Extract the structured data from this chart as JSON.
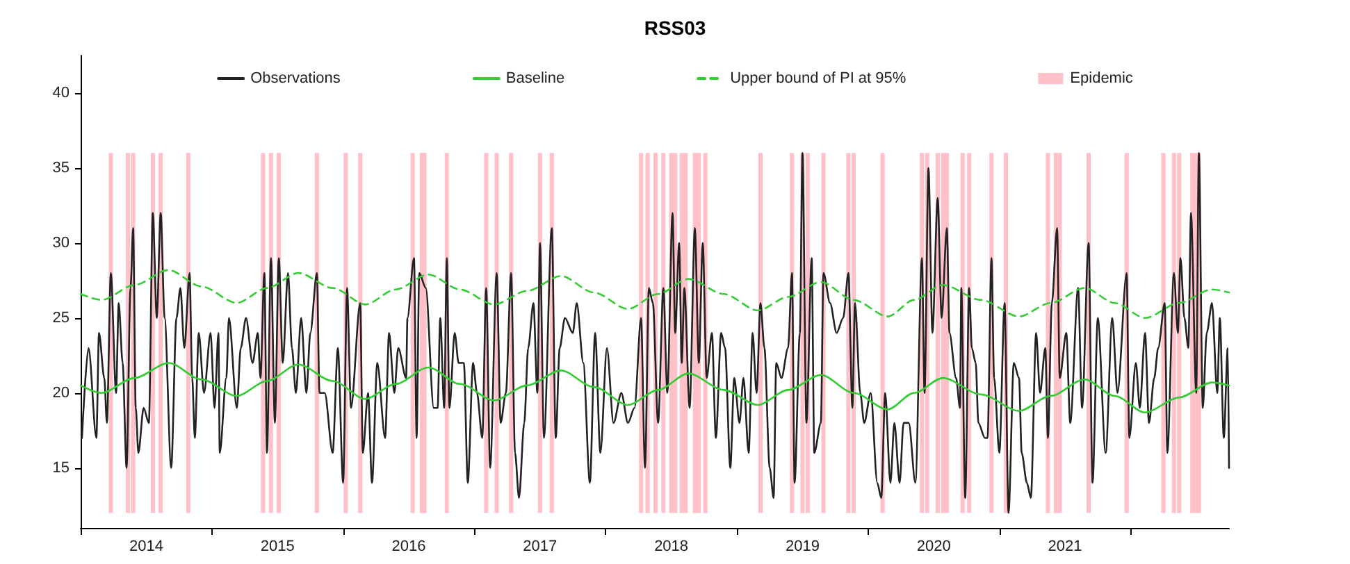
{
  "chart_data": {
    "type": "line",
    "title": "RSS03",
    "xlim": [
      2014,
      2022.75
    ],
    "xticks": [
      {
        "value": 2014,
        "label": null
      },
      {
        "value": 2014.5,
        "label": "2014"
      },
      {
        "value": 2015,
        "label": null
      },
      {
        "value": 2015.5,
        "label": "2015"
      },
      {
        "value": 2016,
        "label": null
      },
      {
        "value": 2016.5,
        "label": "2016"
      },
      {
        "value": 2017,
        "label": null
      },
      {
        "value": 2017.5,
        "label": "2017"
      },
      {
        "value": 2018,
        "label": null
      },
      {
        "value": 2018.5,
        "label": "2018"
      },
      {
        "value": 2019,
        "label": null
      },
      {
        "value": 2019.5,
        "label": "2019"
      },
      {
        "value": 2020,
        "label": null
      },
      {
        "value": 2020.5,
        "label": "2020"
      },
      {
        "value": 2021,
        "label": null
      },
      {
        "value": 2021.5,
        "label": "2021"
      },
      {
        "value": 2022,
        "label": null
      }
    ],
    "ylim": [
      11,
      42.5
    ],
    "yticks": [
      15,
      20,
      25,
      30,
      35,
      40
    ],
    "legend": "top",
    "marker": "none",
    "series": [
      {
        "name": "Observations",
        "color": "#222222",
        "line_style": "solid",
        "x": [
          2014.01,
          2014.06,
          2014.12,
          2014.14,
          2014.18,
          2014.2,
          2014.23,
          2014.27,
          2014.29,
          2014.32,
          2014.35,
          2014.38,
          2014.4,
          2014.42,
          2014.44,
          2014.48,
          2014.52,
          2014.55,
          2014.58,
          2014.61,
          2014.64,
          2014.69,
          2014.73,
          2014.76,
          2014.79,
          2014.83,
          2014.85,
          2014.87,
          2014.9,
          2014.94,
          2014.99,
          2015.02,
          2015.05,
          2015.06,
          2015.11,
          2015.13,
          2015.19,
          2015.22,
          2015.26,
          2015.31,
          2015.35,
          2015.37,
          2015.4,
          2015.42,
          2015.45,
          2015.48,
          2015.51,
          2015.54,
          2015.58,
          2015.61,
          2015.64,
          2015.68,
          2015.72,
          2015.75,
          2015.8,
          2015.82,
          2015.86,
          2015.92,
          2015.96,
          2016.0,
          2016.03,
          2016.06,
          2016.13,
          2016.15,
          2016.19,
          2016.22,
          2016.26,
          2016.32,
          2016.35,
          2016.39,
          2016.42,
          2016.48,
          2016.49,
          2016.54,
          2016.56,
          2016.58,
          2016.63,
          2016.69,
          2016.72,
          2016.74,
          2016.77,
          2016.79,
          2016.81,
          2016.85,
          2016.88,
          2016.92,
          2016.95,
          2016.99,
          2017.02,
          2017.06,
          2017.09,
          2017.12,
          2017.17,
          2017.2,
          2017.24,
          2017.28,
          2017.31,
          2017.34,
          2017.38,
          2017.41,
          2017.45,
          2017.48,
          2017.5,
          2017.53,
          2017.59,
          2017.62,
          2017.65,
          2017.69,
          2017.75,
          2017.78,
          2017.83,
          2017.88,
          2017.92,
          2017.96,
          2018.01,
          2018.06,
          2018.12,
          2018.17,
          2018.22,
          2018.27,
          2018.3,
          2018.33,
          2018.36,
          2018.4,
          2018.44,
          2018.47,
          2018.51,
          2018.53,
          2018.56,
          2018.58,
          2018.6,
          2018.64,
          2018.68,
          2018.71,
          2018.74,
          2018.77,
          2018.81,
          2018.84,
          2018.88,
          2018.91,
          2018.95,
          2018.98,
          2019.02,
          2019.05,
          2019.09,
          2019.12,
          2019.15,
          2019.18,
          2019.21,
          2019.25,
          2019.28,
          2019.3,
          2019.34,
          2019.39,
          2019.42,
          2019.44,
          2019.48,
          2019.5,
          2019.53,
          2019.57,
          2019.59,
          2019.64,
          2019.66,
          2019.71,
          2019.76,
          2019.81,
          2019.85,
          2019.88,
          2019.9,
          2019.94,
          2019.97,
          2020.02,
          2020.07,
          2020.1,
          2020.13,
          2020.17,
          2020.2,
          2020.24,
          2020.27,
          2020.31,
          2020.36,
          2020.41,
          2020.43,
          2020.46,
          2020.49,
          2020.53,
          2020.56,
          2020.6,
          2020.62,
          2020.67,
          2020.7,
          2020.71,
          2020.74,
          2020.77,
          2020.79,
          2020.82,
          2020.84,
          2020.89,
          2020.91,
          2020.94,
          2020.96,
          2021.0,
          2021.04,
          2021.07,
          2021.11,
          2021.15,
          2021.17,
          2021.21,
          2021.24,
          2021.28,
          2021.31,
          2021.35,
          2021.37,
          2021.4,
          2021.44,
          2021.46,
          2021.51,
          2021.54,
          2021.6,
          2021.63,
          2021.68,
          2021.71,
          2021.75,
          2021.81,
          2021.86,
          2021.9,
          2021.97,
          2021.99,
          2022.04,
          2022.07,
          2022.11,
          2022.14,
          2022.18,
          2022.21,
          2022.26,
          2022.28,
          2022.33,
          2022.36,
          2022.38,
          2022.41,
          2022.44,
          2022.46,
          2022.5,
          2022.52,
          2022.55,
          2022.58,
          2022.62,
          2022.66,
          2022.68,
          2022.71,
          2022.74,
          2022.75
        ],
        "values": [
          17,
          23,
          17,
          24,
          21,
          18,
          28,
          20,
          26,
          22,
          15,
          27,
          31,
          19,
          16,
          19,
          18,
          32,
          25,
          32,
          25,
          15,
          25,
          27,
          23,
          28,
          21,
          17,
          24,
          20,
          24,
          19,
          24,
          16,
          21,
          25,
          19,
          23,
          25,
          22,
          24,
          21,
          28,
          16,
          29,
          18,
          29,
          22,
          28,
          23,
          20,
          25,
          20,
          24,
          28,
          20,
          20,
          16,
          23,
          14,
          27,
          19,
          26,
          16,
          20,
          14,
          22,
          17,
          24,
          20,
          23,
          21,
          25,
          29,
          17,
          28,
          27,
          19,
          19,
          25,
          19,
          29,
          19,
          24,
          22,
          22,
          14,
          22,
          20,
          17,
          27,
          15,
          28,
          18,
          20,
          28,
          16,
          13,
          18,
          23,
          26,
          20,
          30,
          17,
          31,
          17,
          23,
          25,
          24,
          26,
          22,
          14,
          24,
          16,
          23,
          18,
          20,
          18,
          19,
          25,
          15,
          27,
          26,
          18,
          27,
          20,
          32,
          24,
          30,
          22,
          27,
          19,
          31,
          22,
          30,
          21,
          24,
          17,
          24,
          23,
          15,
          21,
          18,
          21,
          16,
          24,
          20,
          26,
          23,
          15,
          13,
          22,
          21,
          23,
          28,
          14,
          24,
          36,
          18,
          29,
          16,
          18,
          28,
          26,
          24,
          25,
          28,
          19,
          26,
          20,
          18,
          20,
          14,
          13,
          20,
          14,
          18,
          14,
          18,
          18,
          14,
          29,
          20,
          35,
          24,
          33,
          25,
          31,
          24,
          21,
          19,
          27,
          13,
          27,
          23,
          22,
          18,
          17,
          17,
          29,
          21,
          16,
          26,
          12,
          22,
          21,
          16,
          14,
          13,
          24,
          20,
          23,
          17,
          26,
          31,
          21,
          24,
          18,
          27,
          19,
          30,
          14,
          25,
          16,
          25,
          20,
          28,
          17,
          22,
          19,
          24,
          18,
          21,
          23,
          26,
          16,
          28,
          24,
          29,
          25,
          23,
          32,
          20,
          36,
          19,
          24,
          26,
          20,
          25,
          17,
          23,
          15
        ]
      },
      {
        "name": "Baseline",
        "color": "#33cc33",
        "line_style": "solid",
        "x": [
          2014,
          2014.16,
          2014.41,
          2014.67,
          2014.92,
          2015.19,
          2015.42,
          2015.66,
          2015.92,
          2016.17,
          2016.4,
          2016.65,
          2016.89,
          2017.15,
          2017.4,
          2017.66,
          2017.91,
          2018.17,
          2018.4,
          2018.63,
          2018.9,
          2019.16,
          2019.39,
          2019.64,
          2019.89,
          2020.15,
          2020.35,
          2020.57,
          2020.86,
          2021.15,
          2021.39,
          2021.65,
          2021.88,
          2022.11,
          2022.37,
          2022.62,
          2022.75
        ],
        "values": [
          20.5,
          20.0,
          21.0,
          22.0,
          20.9,
          19.8,
          20.8,
          21.9,
          20.8,
          19.6,
          20.6,
          21.7,
          20.6,
          19.5,
          20.5,
          21.5,
          20.4,
          19.2,
          20.2,
          21.3,
          20.2,
          19.2,
          20.2,
          21.2,
          20.0,
          18.9,
          20.0,
          21.0,
          19.9,
          18.8,
          19.8,
          20.9,
          19.8,
          18.7,
          19.7,
          20.7,
          20.5
        ]
      },
      {
        "name": "Upper bound of PI at 95%",
        "color": "#33cc33",
        "line_style": "dashed",
        "x": [
          2014,
          2014.16,
          2014.41,
          2014.67,
          2014.92,
          2015.19,
          2015.42,
          2015.66,
          2015.92,
          2016.17,
          2016.4,
          2016.65,
          2016.89,
          2017.15,
          2017.4,
          2017.66,
          2017.91,
          2018.17,
          2018.4,
          2018.63,
          2018.9,
          2019.16,
          2019.39,
          2019.64,
          2019.89,
          2020.15,
          2020.35,
          2020.57,
          2020.86,
          2021.15,
          2021.39,
          2021.65,
          2021.88,
          2022.11,
          2022.37,
          2022.62,
          2022.75
        ],
        "values": [
          26.6,
          26.2,
          27.2,
          28.2,
          27.1,
          26.0,
          27.0,
          28.0,
          27.0,
          25.9,
          26.9,
          27.9,
          26.9,
          25.9,
          26.8,
          27.8,
          26.7,
          25.6,
          26.6,
          27.6,
          26.6,
          25.5,
          26.4,
          27.4,
          26.2,
          25.1,
          26.2,
          27.2,
          26.2,
          25.1,
          26.0,
          27.0,
          26.0,
          25.0,
          26.0,
          26.9,
          26.7
        ]
      },
      {
        "name": "Epidemic",
        "type": "bar",
        "color": "#ffc0c8",
        "x": [
          2014.23,
          2014.36,
          2014.4,
          2014.55,
          2014.61,
          2014.82,
          2015.39,
          2015.45,
          2015.51,
          2015.8,
          2016.02,
          2016.13,
          2016.53,
          2016.6,
          2016.62,
          2016.79,
          2017.09,
          2017.17,
          2017.28,
          2017.5,
          2017.59,
          2018.27,
          2018.32,
          2018.38,
          2018.44,
          2018.5,
          2018.53,
          2018.58,
          2018.61,
          2018.68,
          2018.71,
          2018.76,
          2019.18,
          2019.42,
          2019.5,
          2019.54,
          2019.66,
          2019.85,
          2019.89,
          2020.11,
          2020.41,
          2020.45,
          2020.53,
          2020.57,
          2020.6,
          2020.72,
          2020.77,
          2020.94,
          2021.05,
          2021.37,
          2021.43,
          2021.46,
          2021.68,
          2021.97,
          2022.25,
          2022.33,
          2022.37,
          2022.47,
          2022.49,
          2022.52
        ],
        "values": [
          24,
          24,
          24,
          24,
          24,
          24,
          24,
          24,
          24,
          24,
          24,
          24,
          24,
          24,
          24,
          24,
          24,
          24,
          24,
          24,
          24,
          24,
          24,
          24,
          24,
          24,
          24,
          24,
          24,
          24,
          24,
          24,
          24,
          24,
          24,
          24,
          24,
          24,
          24,
          24,
          24,
          24,
          24,
          24,
          24,
          24,
          24,
          24,
          24,
          24,
          24,
          24,
          24,
          24,
          24,
          24,
          24,
          24,
          24,
          24
        ],
        "base": [
          12,
          12,
          12,
          12,
          12,
          12,
          12,
          12,
          12,
          12,
          12,
          12,
          12,
          12,
          12,
          12,
          12,
          12,
          12,
          12,
          12,
          12,
          12,
          12,
          12,
          12,
          12,
          12,
          12,
          12,
          12,
          12,
          12,
          12,
          12,
          12,
          12,
          12,
          12,
          12,
          12,
          12,
          12,
          12,
          12,
          12,
          12,
          12,
          12,
          12,
          12,
          12,
          12,
          12,
          12,
          12,
          12,
          12,
          12,
          12
        ]
      }
    ]
  }
}
